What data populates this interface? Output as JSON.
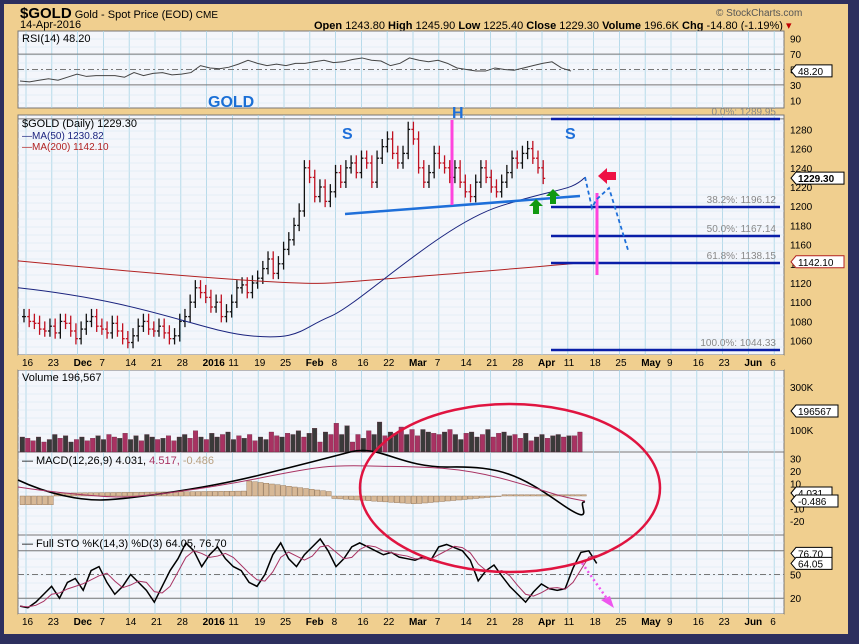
{
  "header": {
    "symbol": "$GOLD",
    "name": "Gold - Spot Price (EOD)",
    "exchange": "CME",
    "date": "14-Apr-2016",
    "copyright": "© StockCharts.com",
    "open_label": "Open",
    "open": "1243.80",
    "high_label": "High",
    "high": "1245.90",
    "low_label": "Low",
    "low": "1225.40",
    "close_label": "Close",
    "close": "1229.30",
    "volume_label": "Volume",
    "volume": "196.6K",
    "chg_label": "Chg",
    "chg": "-14.80 (-1.19%)",
    "chg_color": "#c00000"
  },
  "panels": {
    "rsi": {
      "legend": "RSI(14) 48.20",
      "ticks": [
        "90",
        "70",
        "50",
        "30",
        "10"
      ],
      "value_tag": "48.20"
    },
    "price": {
      "annotation": "GOLD",
      "legend": "$GOLD (Daily) 1229.30",
      "ma50": "MA(50) 1230.82",
      "ma200": "MA(200) 1142.10",
      "ticks": [
        "1280",
        "1260",
        "1240",
        "1220",
        "1200",
        "1180",
        "1160",
        "1140",
        "1120",
        "1100",
        "1080",
        "1060"
      ],
      "close_tag": "1229.30",
      "ma200_tag": "1142.10",
      "pattern_labels": [
        "S",
        "H",
        "S"
      ],
      "fib": [
        {
          "label": "0.0%: 1289.95"
        },
        {
          "label": "38.2%: 1196.12"
        },
        {
          "label": "50.0%: 1167.14"
        },
        {
          "label": "61.8%: 1138.15"
        },
        {
          "label": "100.0%: 1044.33"
        }
      ]
    },
    "volume": {
      "legend": "Volume 196,567",
      "ticks": [
        "300K",
        "100K"
      ],
      "value_tag": "196567"
    },
    "macd": {
      "legend_name": "MACD(12,26,9)",
      "v1": "4.031",
      "v2": "4.517",
      "v3": "-0.486",
      "ticks": [
        "30",
        "20",
        "10",
        "0",
        "-10",
        "-20"
      ],
      "tag1": "4.031",
      "tag2": "-0.486"
    },
    "sto": {
      "legend": "Full STO %K(14,3) %D(3) 64.05, 76.70",
      "ticks": [
        "80",
        "50",
        "20"
      ],
      "tag1": "76.70",
      "tag2": "64.05"
    }
  },
  "x_axis": [
    "16",
    "23",
    "Dec",
    "7",
    "14",
    "21",
    "28",
    "2016",
    "11",
    "19",
    "25",
    "Feb",
    "8",
    "16",
    "22",
    "Mar",
    "7",
    "14",
    "21",
    "28",
    "Apr",
    "11",
    "18",
    "25",
    "May",
    "9",
    "16",
    "23",
    "Jun",
    "6"
  ],
  "chart_data": {
    "type": "line",
    "title": "$GOLD Gold - Spot Price (EOD) CME — 14-Apr-2016",
    "x_range": [
      "2015-11-16",
      "2016-06-06"
    ],
    "price_ylim": [
      1050,
      1295
    ],
    "series": [
      {
        "name": "$GOLD close (approx weekly)",
        "x": [
          "Nov 16",
          "Nov 23",
          "Dec 7",
          "Dec 14",
          "Dec 21",
          "Dec 28",
          "Jan 11",
          "Jan 19",
          "Jan 25",
          "Feb 8",
          "Feb 16",
          "Feb 22",
          "Mar 7",
          "Mar 14",
          "Mar 21",
          "Mar 28",
          "Apr 4",
          "Apr 11",
          "Apr 14"
        ],
        "values": [
          1080,
          1070,
          1075,
          1065,
          1075,
          1060,
          1095,
          1090,
          1115,
          1190,
          1210,
          1225,
          1265,
          1245,
          1240,
          1220,
          1230,
          1255,
          1229.3
        ]
      },
      {
        "name": "MA(50)",
        "last": 1230.82
      },
      {
        "name": "MA(200)",
        "last": 1142.1
      }
    ],
    "fibonacci": [
      {
        "level": "0.0%",
        "value": 1289.95
      },
      {
        "level": "38.2%",
        "value": 1196.12
      },
      {
        "level": "50.0%",
        "value": 1167.14
      },
      {
        "level": "61.8%",
        "value": 1138.15
      },
      {
        "level": "100.0%",
        "value": 1044.33
      }
    ],
    "indicators": {
      "RSI(14)": 48.2,
      "MACD": 4.031,
      "Signal": 4.517,
      "Histogram": -0.486,
      "%K": 64.05,
      "%D": 76.7,
      "Volume": 196567
    },
    "annotations": [
      "Head & shoulders pattern: S (Feb), H (Mar 11), S (Apr 12)",
      "Neckline ~1190-1210",
      "Projected breakdown toward 61.8% fib"
    ],
    "grid": true
  }
}
